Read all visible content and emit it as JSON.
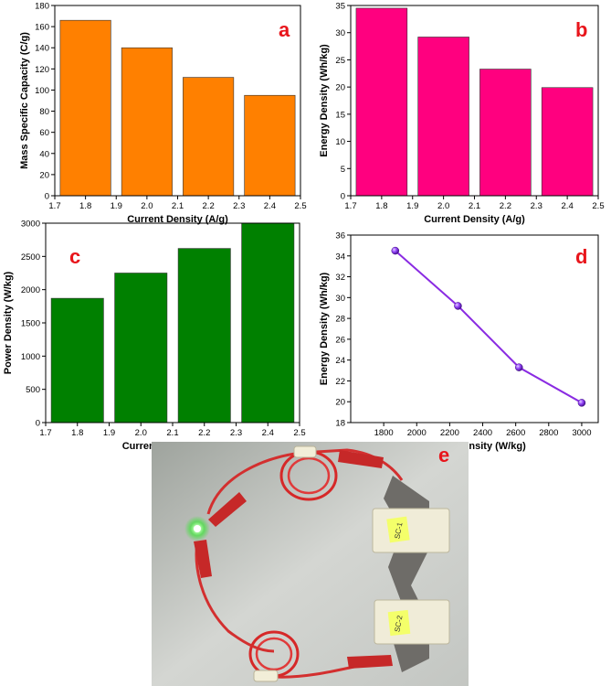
{
  "chart_data": [
    {
      "id": "a",
      "type": "bar",
      "panel_label": "a",
      "x": [
        1.8,
        2.0,
        2.2,
        2.4
      ],
      "values": [
        166,
        140,
        112,
        95
      ],
      "xlabel": "Current Density (A/g)",
      "ylabel": "Mass Specific Capacity (C/g)",
      "xlim": [
        1.7,
        2.5
      ],
      "ylim": [
        0,
        180
      ],
      "xticks": [
        "1.7",
        "1.8",
        "1.9",
        "2.0",
        "2.1",
        "2.2",
        "2.3",
        "2.4",
        "2.5"
      ],
      "yticks": [
        "0",
        "20",
        "40",
        "60",
        "80",
        "100",
        "120",
        "140",
        "160",
        "180"
      ],
      "bar_color": "#FF8000",
      "label_color": "#E8151B",
      "grid": false
    },
    {
      "id": "b",
      "type": "bar",
      "panel_label": "b",
      "x": [
        1.8,
        2.0,
        2.2,
        2.4
      ],
      "values": [
        34.5,
        29.2,
        23.3,
        19.9
      ],
      "xlabel": "Current Density (A/g)",
      "ylabel": "Energy Density (Wh/kg)",
      "xlim": [
        1.7,
        2.5
      ],
      "ylim": [
        0,
        35
      ],
      "xticks": [
        "1.7",
        "1.8",
        "1.9",
        "2.0",
        "2.1",
        "2.2",
        "2.3",
        "2.4",
        "2.5"
      ],
      "yticks": [
        "0",
        "5",
        "10",
        "15",
        "20",
        "25",
        "30",
        "35"
      ],
      "bar_color": "#FF007F",
      "label_color": "#E8151B",
      "grid": false
    },
    {
      "id": "c",
      "type": "bar",
      "panel_label": "c",
      "x": [
        1.8,
        2.0,
        2.2,
        2.4
      ],
      "values": [
        1870,
        2250,
        2620,
        3000
      ],
      "xlabel": "Current Density (A/g)",
      "ylabel": "Power Density (W/kg)",
      "xlim": [
        1.7,
        2.5
      ],
      "ylim": [
        0,
        3000
      ],
      "xticks": [
        "1.7",
        "1.8",
        "1.9",
        "2.0",
        "2.1",
        "2.2",
        "2.3",
        "2.4",
        "2.5"
      ],
      "yticks": [
        "0",
        "500",
        "1000",
        "1500",
        "2000",
        "2500",
        "3000"
      ],
      "bar_color": "#008000",
      "label_color": "#E8151B",
      "grid": false
    },
    {
      "id": "d",
      "type": "line",
      "panel_label": "d",
      "x": [
        1870,
        2250,
        2620,
        3000
      ],
      "values": [
        34.5,
        29.2,
        23.3,
        19.9
      ],
      "xlabel": "Power Density (W/kg)",
      "ylabel": "Energy Density (Wh/kg)",
      "xlim": [
        1600,
        3100
      ],
      "ylim": [
        18,
        36
      ],
      "xticks": [
        "1800",
        "2000",
        "2200",
        "2400",
        "2600",
        "2800",
        "3000"
      ],
      "yticks": [
        "18",
        "20",
        "22",
        "24",
        "26",
        "28",
        "30",
        "32",
        "34",
        "36"
      ],
      "line_color": "#8A2BE2",
      "marker": "sphere",
      "label_color": "#E8151B",
      "grid": false
    }
  ],
  "photo": {
    "panel_label": "e",
    "label_color": "#E8151B",
    "tag_top_text": "SC-1",
    "tag_bottom_text": "SC-2"
  }
}
